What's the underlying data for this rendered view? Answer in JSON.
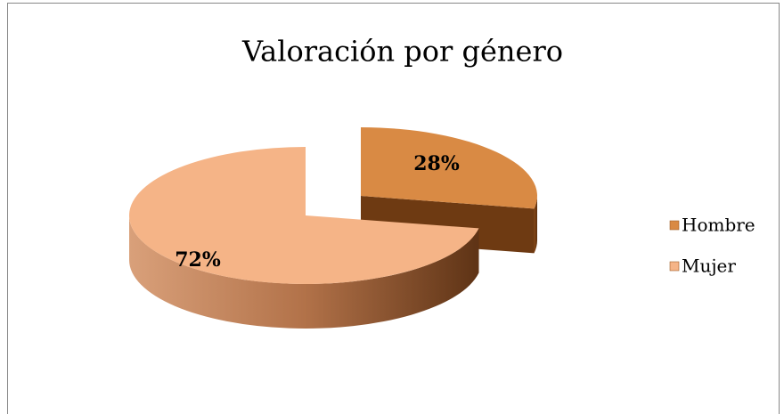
{
  "chart_data": {
    "type": "pie",
    "title": "Valoración por género",
    "categories": [
      "Hombre",
      "Mujer"
    ],
    "values": [
      28,
      72
    ],
    "value_labels": [
      "28%",
      "72%"
    ],
    "colors": [
      "#d98a44",
      "#f5b487"
    ],
    "legend": "right",
    "three_d": true
  }
}
